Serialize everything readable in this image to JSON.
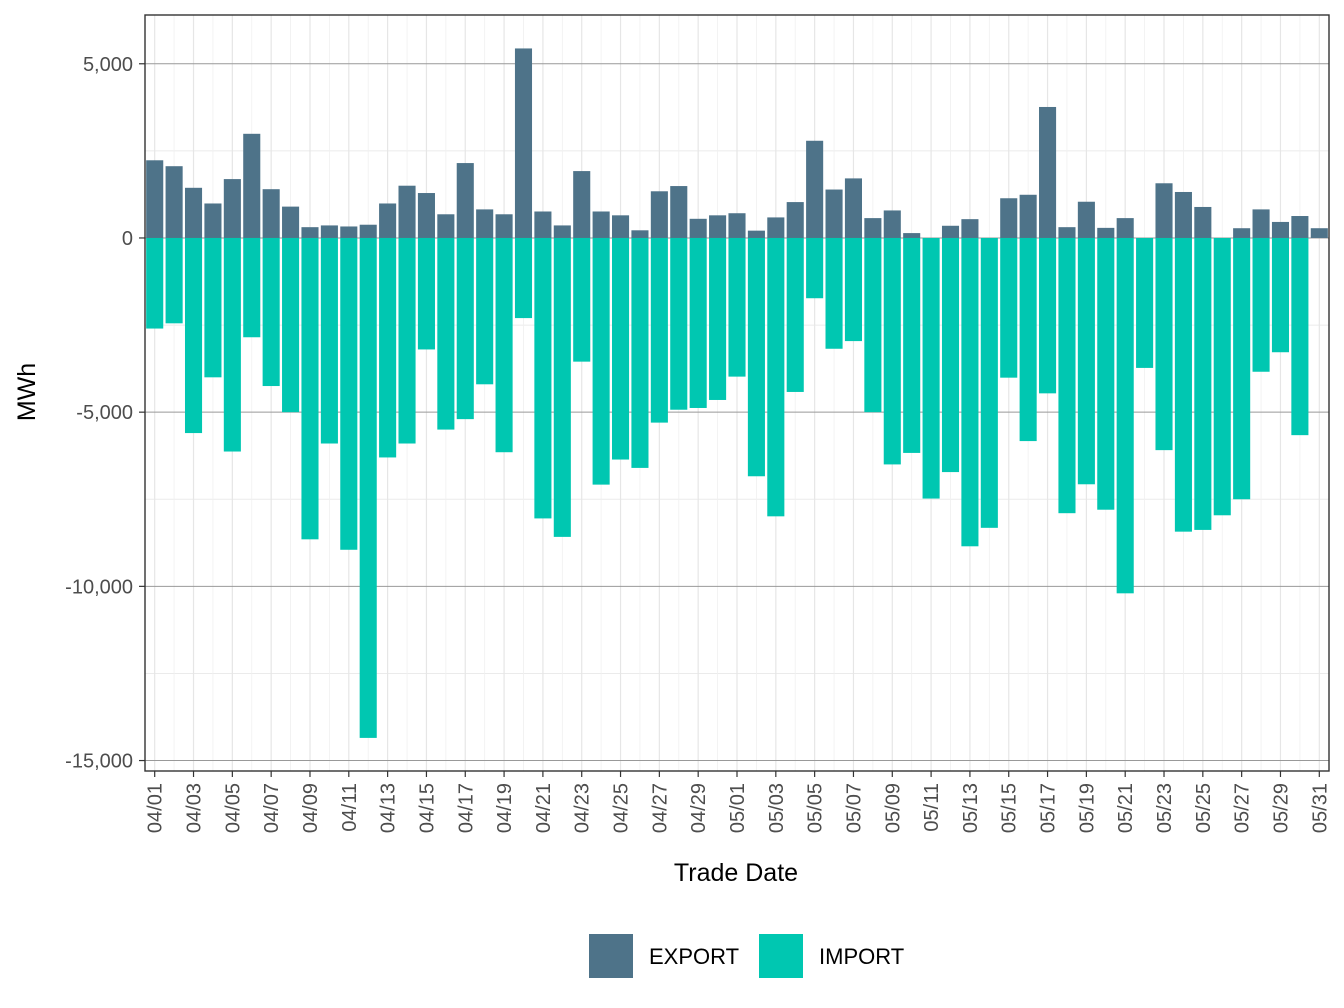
{
  "chart_data": {
    "type": "bar",
    "stacked": true,
    "xlabel": "Trade Date",
    "ylabel": "MWh",
    "ylim": [
      -15300,
      6400
    ],
    "y_ticks": [
      5000,
      0,
      -5000,
      -10000,
      -15000
    ],
    "y_tick_labels": [
      "5,000",
      "0",
      "-5,000",
      "-10,000",
      "-15,000"
    ],
    "grid": true,
    "legend_position": "bottom",
    "categories": [
      "04/01",
      "04/02",
      "04/03",
      "04/04",
      "04/05",
      "04/06",
      "04/07",
      "04/08",
      "04/09",
      "04/10",
      "04/11",
      "04/12",
      "04/13",
      "04/14",
      "04/15",
      "04/16",
      "04/17",
      "04/18",
      "04/19",
      "04/20",
      "04/21",
      "04/22",
      "04/23",
      "04/24",
      "04/25",
      "04/26",
      "04/27",
      "04/28",
      "04/29",
      "04/30",
      "05/01",
      "05/02",
      "05/03",
      "05/04",
      "05/05",
      "05/06",
      "05/07",
      "05/08",
      "05/09",
      "05/10",
      "05/11",
      "05/12",
      "05/13",
      "05/14",
      "05/15",
      "05/16",
      "05/17",
      "05/18",
      "05/19",
      "05/20",
      "05/21",
      "05/22",
      "05/23",
      "05/24",
      "05/25",
      "05/26",
      "05/27",
      "05/28",
      "05/29",
      "05/30",
      "05/31"
    ],
    "x_tick_labels": [
      "04/01",
      "04/03",
      "04/05",
      "04/07",
      "04/09",
      "04/11",
      "04/13",
      "04/15",
      "04/17",
      "04/19",
      "04/21",
      "04/23",
      "04/25",
      "04/27",
      "04/29",
      "05/01",
      "05/03",
      "05/05",
      "05/07",
      "05/09",
      "05/11",
      "05/13",
      "05/15",
      "05/17",
      "05/19",
      "05/21",
      "05/23",
      "05/25",
      "05/27",
      "05/29",
      "05/31"
    ],
    "series": [
      {
        "name": "EXPORT",
        "color": "#4e7389",
        "values": [
          2230,
          2060,
          1440,
          990,
          1690,
          2990,
          1400,
          900,
          310,
          360,
          330,
          380,
          990,
          1500,
          1290,
          680,
          2150,
          820,
          680,
          5440,
          760,
          360,
          1920,
          760,
          650,
          220,
          1340,
          1490,
          550,
          650,
          710,
          210,
          590,
          1030,
          2790,
          1390,
          1710,
          570,
          790,
          140,
          0,
          350,
          540,
          0,
          1140,
          1240,
          3760,
          310,
          1040,
          290,
          570,
          0,
          1570,
          1320,
          890,
          0,
          280,
          820,
          460,
          630,
          280
        ]
      },
      {
        "name": "IMPORT",
        "color": "#00c7b1",
        "values": [
          -2600,
          -2450,
          -5600,
          -4000,
          -6130,
          -2850,
          -4250,
          -5000,
          -8650,
          -5900,
          -8950,
          -14350,
          -6300,
          -5900,
          -3200,
          -5500,
          -5200,
          -4200,
          -6150,
          -2300,
          -8050,
          -8580,
          -3550,
          -7080,
          -6360,
          -6600,
          -5300,
          -4930,
          -4880,
          -4650,
          -3980,
          -6840,
          -7990,
          -4420,
          -1730,
          -3180,
          -2960,
          -5000,
          -6500,
          -6170,
          -7480,
          -6720,
          -8850,
          -8320,
          -4010,
          -5830,
          -4460,
          -7900,
          -7070,
          -7800,
          -10200,
          -3730,
          -6090,
          -8430,
          -8380,
          -7960,
          -7500,
          -3840,
          -3280,
          -5660,
          0
        ]
      }
    ]
  }
}
